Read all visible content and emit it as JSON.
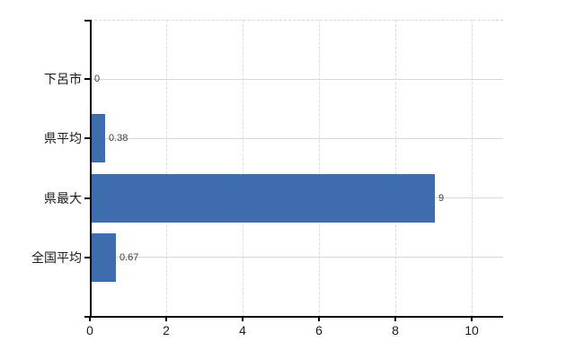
{
  "chart_data": {
    "type": "bar",
    "orientation": "horizontal",
    "title": "",
    "xlabel": "",
    "ylabel": "",
    "categories": [
      "下呂市",
      "県平均",
      "県最大",
      "全国平均"
    ],
    "values": [
      0,
      0.38,
      9,
      0.67
    ],
    "value_labels": [
      "0",
      "0.38",
      "9",
      "0.67"
    ],
    "x_ticks": [
      0,
      2,
      4,
      6,
      8,
      10
    ],
    "x_tick_labels": [
      "0",
      "2",
      "4",
      "6",
      "8",
      "10"
    ],
    "xlim": [
      0,
      10.8
    ],
    "grid": true,
    "legend": "none",
    "colors": {
      "bar": "#3d6caf",
      "h_gridline": "#d5dbd3",
      "v_gridline": "#d8dcd4",
      "plot_border": "#d6d6d6",
      "axis": "#000000",
      "value_text": "#3b3b3b",
      "label_text": "#1a1a1a",
      "background": "#ffffff"
    }
  }
}
